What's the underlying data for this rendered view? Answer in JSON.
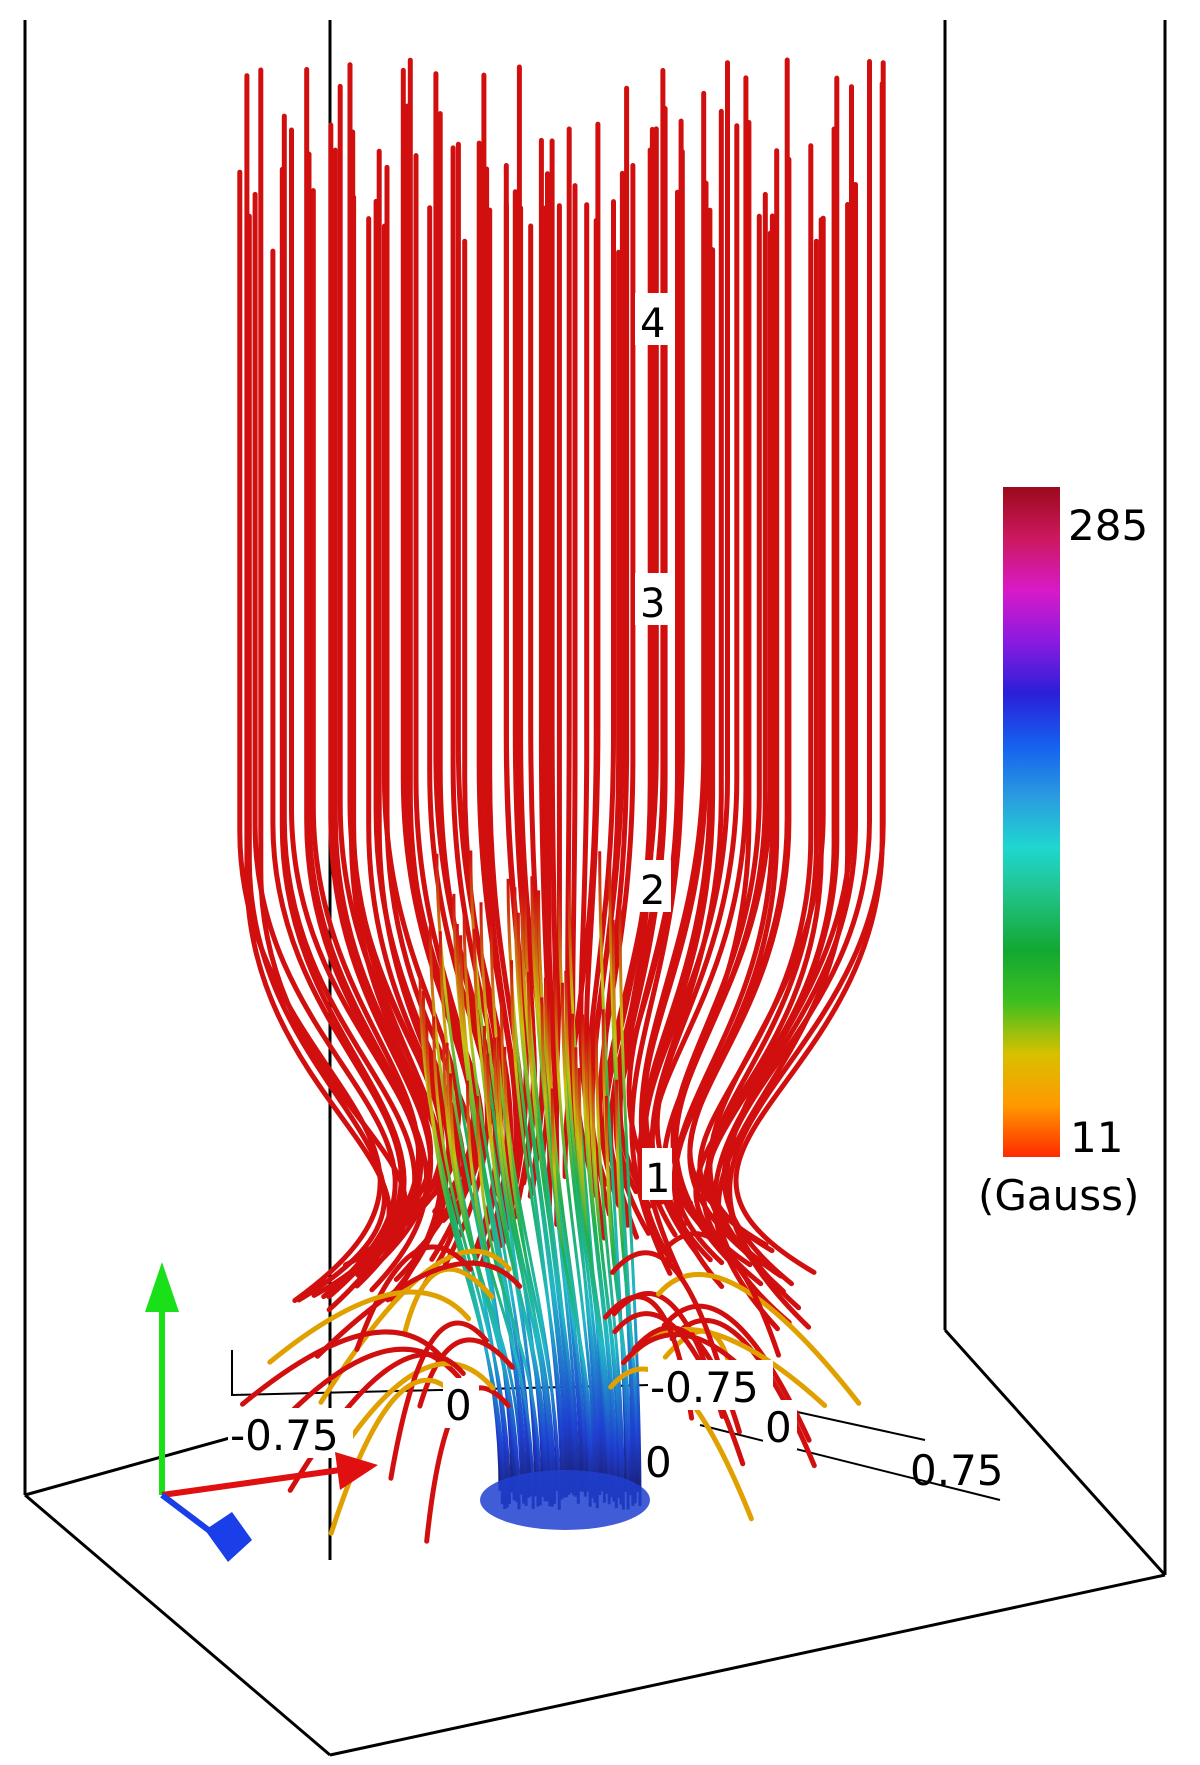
{
  "figure": {
    "height_labels": [
      "4",
      "3",
      "2",
      "1"
    ],
    "axis_tick_labels": {
      "left_axis": [
        "-0.75",
        "0"
      ],
      "back_axis": [
        "-0.75",
        "0"
      ],
      "right_axis": [
        "0",
        "0.75"
      ]
    },
    "colorbar": {
      "max_label": "285",
      "min_label": "11",
      "unit_label": "(Gauss)",
      "colors": [
        "#ff2a00",
        "#ff9900",
        "#d8c000",
        "#3fbf1f",
        "#12a832",
        "#20c080",
        "#1fd7d0",
        "#2a9be0",
        "#1560ef",
        "#2a1fd9",
        "#8a1ae0",
        "#d81ac8",
        "#cc1860",
        "#9c0a1a"
      ]
    },
    "colors": {
      "field_line_outer": "#d10f0f",
      "field_line_core_mid": "#1fb38a",
      "field_line_core_base": "#1e3fd0",
      "box_edge": "#000000",
      "triad_x": "#e01010",
      "triad_y": "#19e019",
      "triad_z": "#1a3fe8"
    },
    "icons": [
      "x-axis-arrow-icon",
      "y-axis-arrow-icon",
      "z-axis-arrow-icon"
    ]
  }
}
